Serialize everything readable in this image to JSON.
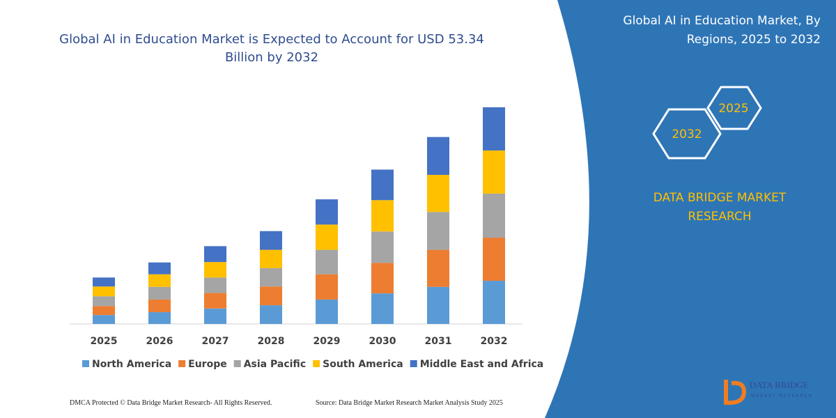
{
  "chart_data": {
    "type": "bar",
    "stacked": true,
    "title": "Global AI in Education Market is Expected to Account for USD 53.34 Billion by 2032",
    "categories": [
      "2025",
      "2026",
      "2027",
      "2028",
      "2029",
      "2030",
      "2031",
      "2032"
    ],
    "series": [
      {
        "name": "North America",
        "color": "#5b9bd5",
        "values": [
          2.2,
          2.9,
          3.8,
          4.6,
          6.0,
          7.5,
          9.1,
          10.6
        ]
      },
      {
        "name": "Europe",
        "color": "#ed7d31",
        "values": [
          2.2,
          3.1,
          3.8,
          4.6,
          6.2,
          7.5,
          9.1,
          10.6
        ]
      },
      {
        "name": "Asia Pacific",
        "color": "#a5a5a5",
        "values": [
          2.4,
          3.1,
          3.8,
          4.5,
          6.0,
          7.7,
          9.3,
          10.8
        ]
      },
      {
        "name": "South America",
        "color": "#ffc000",
        "values": [
          2.4,
          3.1,
          3.8,
          4.5,
          6.2,
          7.7,
          9.1,
          10.6
        ]
      },
      {
        "name": "Middle East and Africa",
        "color": "#4472c4",
        "values": [
          2.2,
          2.9,
          3.9,
          4.6,
          6.2,
          7.5,
          9.3,
          10.6
        ]
      }
    ],
    "legend": "bottom",
    "grid": false
  },
  "panel": {
    "title": "Global AI in Education Market, By Regions, 2025 to 2032",
    "hexagons": [
      "2025",
      "2032"
    ],
    "brand": "DATA BRIDGE MARKET RESEARCH"
  },
  "footer": {
    "copyright": "DMCA Protected © Data Bridge Market Research-  All Rights Reserved.",
    "source": "Source: Data Bridge Market Research  Market Analysis Study 2025"
  },
  "logo": {
    "name": "DATA BRIDGE",
    "tagline": "MARKET RESEARCH"
  }
}
